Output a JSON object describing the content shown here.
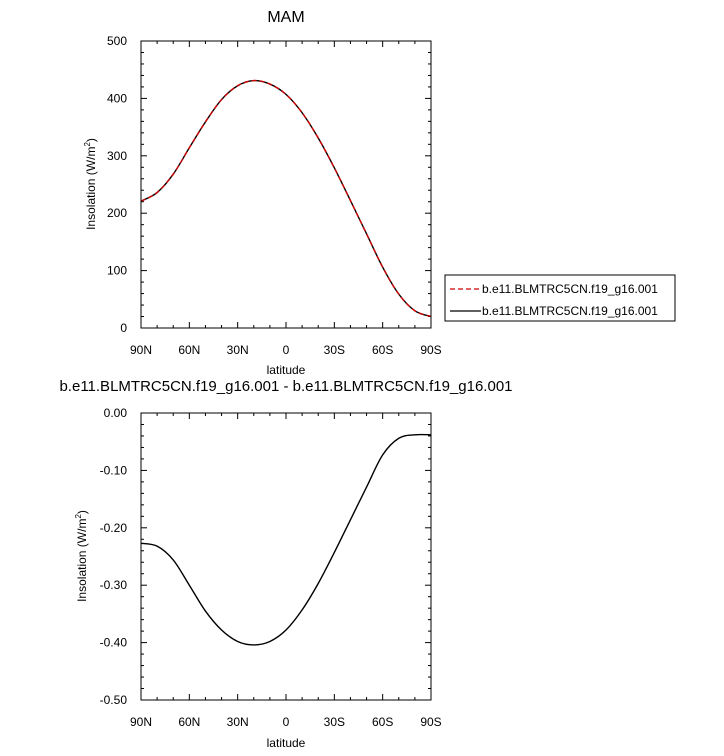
{
  "chart_data": [
    {
      "type": "line",
      "title": "MAM",
      "xlabel": "latitude",
      "ylabel": "Insolation (W/m",
      "ylabel_sup": "2",
      "ylabel_close": ")",
      "xlim": [
        90,
        -90
      ],
      "ylim": [
        0,
        500
      ],
      "xticks": [
        90,
        60,
        30,
        0,
        -30,
        -60,
        -90
      ],
      "xtick_labels": [
        "90N",
        "60N",
        "30N",
        "0",
        "30S",
        "60S",
        "90S"
      ],
      "yticks": [
        0,
        100,
        200,
        300,
        400,
        500
      ],
      "ytick_labels": [
        "0",
        "100",
        "200",
        "300",
        "400",
        "500"
      ],
      "x": [
        90,
        80,
        70,
        60,
        50,
        40,
        30,
        20,
        10,
        0,
        -10,
        -20,
        -30,
        -40,
        -50,
        -60,
        -70,
        -80,
        -90
      ],
      "series": [
        {
          "name": "b.e11.BLMTRC5CN.f19_g16.001",
          "color": "#cc0000",
          "dash": "dashed",
          "values": [
            221,
            236,
            268,
            314,
            359,
            398,
            422,
            431,
            425,
            407,
            375,
            331,
            279,
            222,
            164,
            106,
            59,
            30,
            20
          ]
        },
        {
          "name": "b.e11.BLMTRC5CN.f19_g16.001",
          "color": "#000000",
          "dash": "solid",
          "values": [
            221,
            236,
            268,
            314,
            359,
            398,
            422,
            431,
            425,
            407,
            375,
            331,
            279,
            222,
            164,
            106,
            59,
            30,
            20
          ]
        }
      ],
      "legend_position": "right"
    },
    {
      "type": "line",
      "title": "b.e11.BLMTRC5CN.f19_g16.001 - b.e11.BLMTRC5CN.f19_g16.001",
      "xlabel": "latitude",
      "ylabel": "Insolation (W/m",
      "ylabel_sup": "2",
      "ylabel_close": ")",
      "xlim": [
        90,
        -90
      ],
      "ylim": [
        -0.5,
        0.0
      ],
      "xticks": [
        90,
        60,
        30,
        0,
        -30,
        -60,
        -90
      ],
      "xtick_labels": [
        "90N",
        "60N",
        "30N",
        "0",
        "30S",
        "60S",
        "90S"
      ],
      "yticks": [
        0.0,
        -0.1,
        -0.2,
        -0.3,
        -0.4,
        -0.5
      ],
      "ytick_labels": [
        "0.00",
        "-0.10",
        "-0.20",
        "-0.30",
        "-0.40",
        "-0.50"
      ],
      "x": [
        90,
        80,
        70,
        60,
        50,
        40,
        30,
        20,
        10,
        0,
        -10,
        -20,
        -30,
        -40,
        -50,
        -60,
        -70,
        -80,
        -90
      ],
      "series": [
        {
          "color": "#000000",
          "dash": "solid",
          "values": [
            -0.227,
            -0.232,
            -0.256,
            -0.3,
            -0.345,
            -0.378,
            -0.398,
            -0.404,
            -0.398,
            -0.378,
            -0.343,
            -0.297,
            -0.243,
            -0.186,
            -0.129,
            -0.073,
            -0.044,
            -0.038,
            -0.038
          ]
        }
      ]
    }
  ]
}
